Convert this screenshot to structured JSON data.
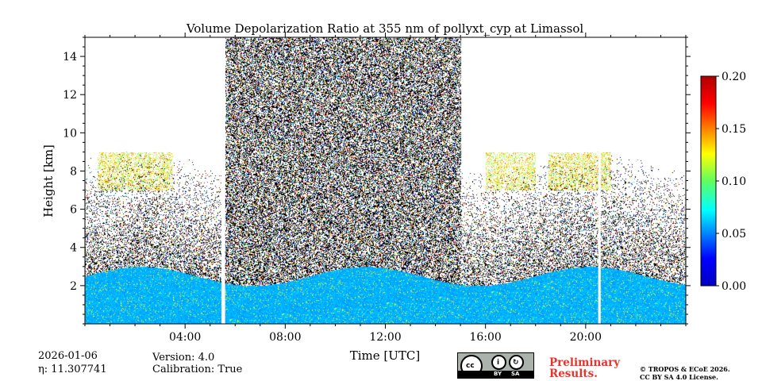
{
  "chart_data": {
    "type": "heatmap",
    "title": "Volume Depolarization Ratio at 355 nm of pollyxt_cyp at Limassol",
    "xlabel": "Time [UTC]",
    "ylabel": "Height [km]",
    "xlim_hours": [
      0,
      24
    ],
    "ylim_km": [
      0,
      15
    ],
    "x_ticks": [
      "04:00",
      "08:00",
      "12:00",
      "16:00",
      "20:00"
    ],
    "x_tick_hours": [
      4,
      8,
      12,
      16,
      20
    ],
    "y_ticks": [
      "2",
      "4",
      "6",
      "8",
      "10",
      "12",
      "14"
    ],
    "y_tick_values": [
      2,
      4,
      6,
      8,
      10,
      12,
      14
    ],
    "colorbar": {
      "min": 0.0,
      "max": 0.2,
      "ticks": [
        "0.00",
        "0.05",
        "0.10",
        "0.15",
        "0.20"
      ],
      "tick_values": [
        0.0,
        0.05,
        0.1,
        0.15,
        0.2
      ],
      "colormap": "jet"
    },
    "data_gaps_hours": [
      [
        5.45,
        5.6
      ],
      [
        20.5,
        20.6
      ]
    ],
    "features": {
      "boundary_layer_top_km": 2.5,
      "high_noise_period_hours": [
        5.6,
        15.0
      ],
      "dust_layer_depolarization_approx": 0.13,
      "dust_layer_km": [
        7,
        9
      ],
      "boundary_layer_depolarization_approx": 0.04
    }
  },
  "footer": {
    "date": "2026-01-06",
    "eta": "η: 11.307741",
    "version": "Version: 4.0",
    "calibration": "Calibration: True",
    "preliminary_line1": "Preliminary",
    "preliminary_line2": "Results.",
    "copyright_line1": "© TROPOS & ECoE 2026.",
    "copyright_line2": "CC BY SA 4.0 License.",
    "license_badge": {
      "by": "BY",
      "sa": "SA"
    }
  }
}
